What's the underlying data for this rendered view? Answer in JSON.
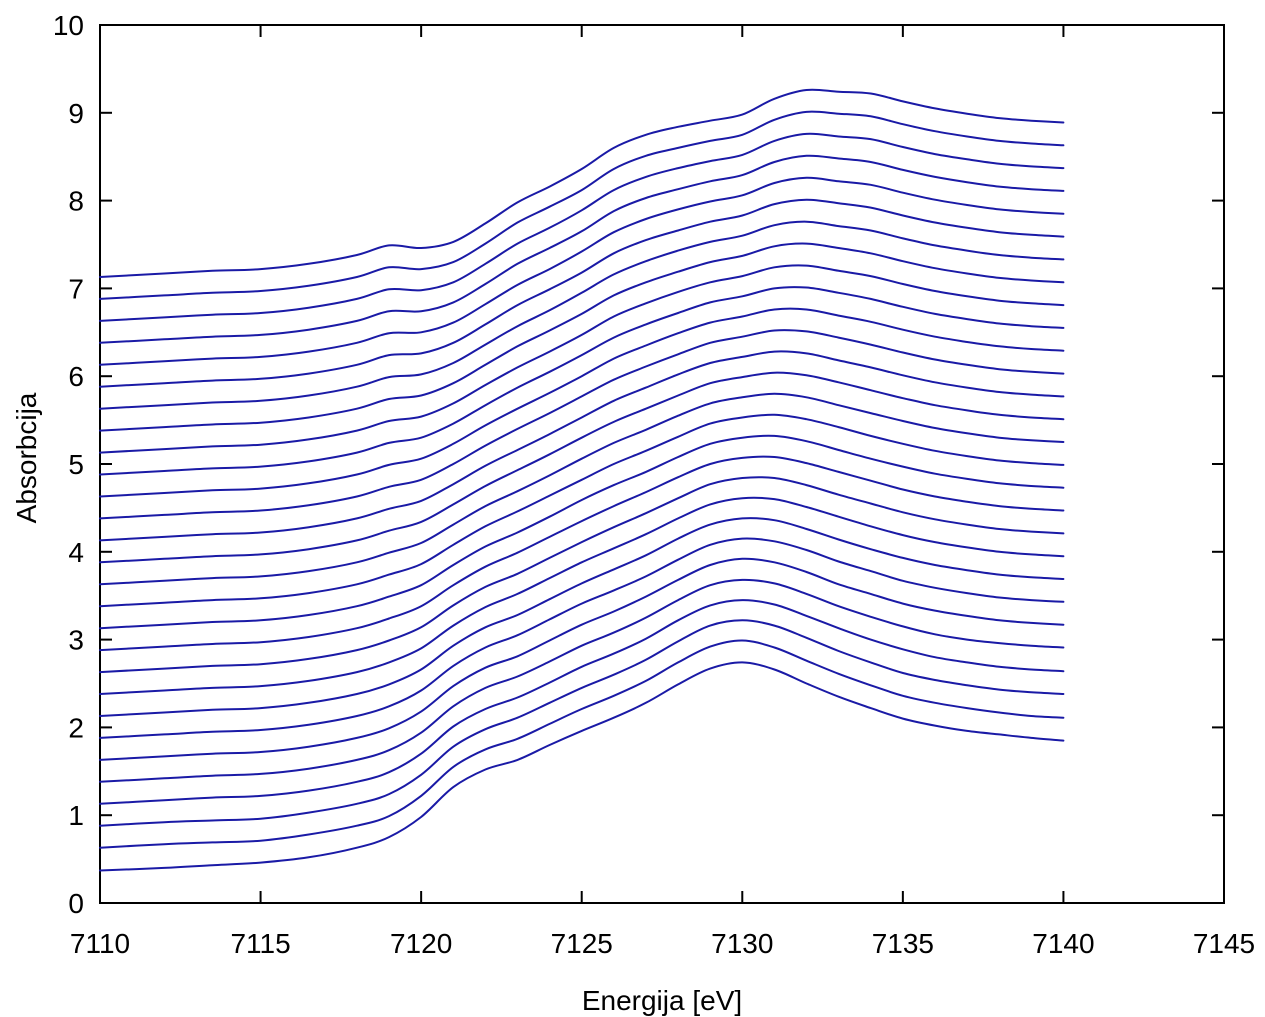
{
  "chart_data": {
    "type": "line",
    "title": "",
    "xlabel": "Energija [eV]",
    "ylabel": "Absorbcija",
    "xlim": [
      7110,
      7145
    ],
    "ylim": [
      0,
      10
    ],
    "xticks": [
      7110,
      7115,
      7120,
      7125,
      7130,
      7135,
      7140,
      7145
    ],
    "yticks": [
      0,
      1,
      2,
      3,
      4,
      5,
      6,
      7,
      8,
      9,
      10
    ],
    "xtick_labels": [
      "7110",
      "7115",
      "7120",
      "7125",
      "7130",
      "7135",
      "7140",
      "7145"
    ],
    "ytick_labels": [
      "0",
      "1",
      "2",
      "3",
      "4",
      "5",
      "6",
      "7",
      "8",
      "9",
      "10"
    ],
    "grid": false,
    "legend": "none",
    "line_color": "#1a1aa6",
    "x": [
      7110,
      7112,
      7113.5,
      7115,
      7116.5,
      7118,
      7119,
      7120,
      7121,
      7122,
      7123,
      7124,
      7125,
      7126,
      7127,
      7128,
      7129,
      7130,
      7131,
      7132,
      7133,
      7134,
      7135,
      7136,
      7137,
      7138,
      7139,
      7140
    ],
    "series": [
      {
        "values": [
          0.37,
          0.4,
          0.43,
          0.46,
          0.52,
          0.63,
          0.75,
          0.98,
          1.32,
          1.52,
          1.63,
          1.8,
          1.96,
          2.11,
          2.28,
          2.49,
          2.67,
          2.74,
          2.66,
          2.5,
          2.35,
          2.22,
          2.1,
          2.02,
          1.96,
          1.92,
          1.88,
          1.85
        ]
      },
      {
        "values": [
          0.63,
          0.67,
          0.69,
          0.71,
          0.78,
          0.88,
          0.99,
          1.22,
          1.55,
          1.75,
          1.87,
          2.04,
          2.21,
          2.36,
          2.53,
          2.74,
          2.92,
          2.99,
          2.91,
          2.76,
          2.61,
          2.48,
          2.36,
          2.28,
          2.22,
          2.17,
          2.13,
          2.11
        ]
      },
      {
        "values": [
          0.88,
          0.92,
          0.94,
          0.96,
          1.03,
          1.13,
          1.24,
          1.46,
          1.78,
          1.98,
          2.11,
          2.28,
          2.45,
          2.6,
          2.77,
          2.98,
          3.16,
          3.22,
          3.16,
          3.02,
          2.87,
          2.74,
          2.62,
          2.54,
          2.48,
          2.43,
          2.4,
          2.38
        ]
      },
      {
        "values": [
          1.13,
          1.17,
          1.2,
          1.22,
          1.28,
          1.38,
          1.49,
          1.7,
          2.01,
          2.21,
          2.34,
          2.51,
          2.69,
          2.84,
          3.01,
          3.22,
          3.39,
          3.45,
          3.4,
          3.27,
          3.13,
          3.0,
          2.89,
          2.8,
          2.74,
          2.69,
          2.66,
          2.64
        ]
      },
      {
        "values": [
          1.38,
          1.42,
          1.45,
          1.47,
          1.53,
          1.63,
          1.74,
          1.94,
          2.24,
          2.45,
          2.58,
          2.75,
          2.93,
          3.08,
          3.25,
          3.45,
          3.62,
          3.68,
          3.64,
          3.52,
          3.38,
          3.26,
          3.15,
          3.06,
          3.0,
          2.96,
          2.93,
          2.91
        ]
      },
      {
        "values": [
          1.63,
          1.67,
          1.7,
          1.72,
          1.78,
          1.88,
          1.99,
          2.18,
          2.47,
          2.68,
          2.81,
          2.99,
          3.17,
          3.32,
          3.49,
          3.68,
          3.85,
          3.92,
          3.88,
          3.77,
          3.63,
          3.52,
          3.41,
          3.33,
          3.27,
          3.22,
          3.19,
          3.17
        ]
      },
      {
        "values": [
          1.88,
          1.92,
          1.95,
          1.97,
          2.03,
          2.13,
          2.24,
          2.42,
          2.7,
          2.91,
          3.05,
          3.23,
          3.41,
          3.56,
          3.72,
          3.91,
          4.08,
          4.15,
          4.12,
          4.02,
          3.89,
          3.78,
          3.67,
          3.59,
          3.53,
          3.48,
          3.45,
          3.43
        ]
      },
      {
        "values": [
          2.13,
          2.17,
          2.2,
          2.22,
          2.28,
          2.38,
          2.49,
          2.66,
          2.93,
          3.14,
          3.28,
          3.46,
          3.64,
          3.8,
          3.96,
          4.15,
          4.31,
          4.38,
          4.36,
          4.26,
          4.14,
          4.03,
          3.93,
          3.85,
          3.79,
          3.74,
          3.71,
          3.69
        ]
      },
      {
        "values": [
          2.38,
          2.42,
          2.45,
          2.47,
          2.53,
          2.63,
          2.74,
          2.9,
          3.16,
          3.37,
          3.52,
          3.7,
          3.88,
          4.04,
          4.2,
          4.38,
          4.54,
          4.61,
          4.6,
          4.51,
          4.4,
          4.29,
          4.19,
          4.11,
          4.05,
          4.0,
          3.97,
          3.95
        ]
      },
      {
        "values": [
          2.63,
          2.67,
          2.7,
          2.72,
          2.78,
          2.88,
          2.99,
          3.14,
          3.39,
          3.6,
          3.75,
          3.93,
          4.11,
          4.28,
          4.44,
          4.61,
          4.77,
          4.84,
          4.84,
          4.76,
          4.65,
          4.55,
          4.45,
          4.37,
          4.31,
          4.26,
          4.23,
          4.21
        ]
      },
      {
        "values": [
          2.88,
          2.92,
          2.95,
          2.97,
          3.03,
          3.13,
          3.24,
          3.38,
          3.62,
          3.83,
          3.99,
          4.17,
          4.35,
          4.52,
          4.68,
          4.85,
          5.0,
          5.07,
          5.08,
          5.01,
          4.91,
          4.81,
          4.71,
          4.63,
          4.57,
          4.52,
          4.49,
          4.47
        ]
      },
      {
        "values": [
          3.13,
          3.17,
          3.2,
          3.22,
          3.28,
          3.38,
          3.49,
          3.62,
          3.85,
          4.06,
          4.22,
          4.4,
          4.59,
          4.76,
          4.91,
          5.08,
          5.23,
          5.3,
          5.32,
          5.26,
          5.16,
          5.06,
          4.97,
          4.89,
          4.83,
          4.78,
          4.75,
          4.73
        ]
      },
      {
        "values": [
          3.38,
          3.42,
          3.45,
          3.47,
          3.53,
          3.63,
          3.74,
          3.86,
          4.08,
          4.29,
          4.46,
          4.64,
          4.82,
          5.0,
          5.15,
          5.31,
          5.46,
          5.53,
          5.56,
          5.51,
          5.42,
          5.32,
          5.23,
          5.15,
          5.09,
          5.04,
          5.01,
          4.99
        ]
      },
      {
        "values": [
          3.63,
          3.67,
          3.7,
          3.72,
          3.78,
          3.88,
          3.99,
          4.1,
          4.31,
          4.52,
          4.69,
          4.87,
          5.06,
          5.24,
          5.39,
          5.55,
          5.69,
          5.76,
          5.8,
          5.76,
          5.67,
          5.58,
          5.49,
          5.41,
          5.35,
          5.3,
          5.27,
          5.25
        ]
      },
      {
        "values": [
          3.88,
          3.92,
          3.95,
          3.97,
          4.03,
          4.13,
          4.24,
          4.34,
          4.54,
          4.75,
          4.93,
          5.11,
          5.3,
          5.48,
          5.63,
          5.78,
          5.92,
          5.99,
          6.04,
          6.01,
          5.93,
          5.84,
          5.75,
          5.67,
          5.61,
          5.56,
          5.53,
          5.51
        ]
      },
      {
        "values": [
          4.13,
          4.17,
          4.2,
          4.22,
          4.28,
          4.38,
          4.49,
          4.58,
          4.77,
          4.98,
          5.16,
          5.34,
          5.53,
          5.72,
          5.87,
          6.02,
          6.15,
          6.22,
          6.28,
          6.26,
          6.18,
          6.1,
          6.01,
          5.93,
          5.87,
          5.82,
          5.79,
          5.77
        ]
      },
      {
        "values": [
          4.38,
          4.42,
          4.45,
          4.47,
          4.53,
          4.63,
          4.74,
          4.82,
          5.0,
          5.21,
          5.4,
          5.58,
          5.77,
          5.96,
          6.11,
          6.25,
          6.38,
          6.45,
          6.52,
          6.51,
          6.44,
          6.36,
          6.27,
          6.19,
          6.13,
          6.08,
          6.05,
          6.03
        ]
      },
      {
        "values": [
          4.63,
          4.67,
          4.7,
          4.72,
          4.78,
          4.88,
          4.99,
          5.06,
          5.23,
          5.44,
          5.63,
          5.81,
          6.0,
          6.2,
          6.35,
          6.49,
          6.61,
          6.68,
          6.76,
          6.76,
          6.69,
          6.62,
          6.53,
          6.45,
          6.39,
          6.34,
          6.31,
          6.29
        ]
      },
      {
        "values": [
          4.88,
          4.92,
          4.95,
          4.97,
          5.03,
          5.13,
          5.24,
          5.3,
          5.46,
          5.67,
          5.87,
          6.05,
          6.24,
          6.44,
          6.59,
          6.72,
          6.84,
          6.91,
          7.0,
          7.01,
          6.95,
          6.88,
          6.79,
          6.71,
          6.65,
          6.6,
          6.57,
          6.55
        ]
      },
      {
        "values": [
          5.13,
          5.17,
          5.2,
          5.22,
          5.28,
          5.38,
          5.49,
          5.54,
          5.69,
          5.9,
          6.1,
          6.28,
          6.47,
          6.68,
          6.83,
          6.96,
          7.07,
          7.14,
          7.24,
          7.26,
          7.2,
          7.14,
          7.05,
          6.97,
          6.91,
          6.86,
          6.83,
          6.81
        ]
      },
      {
        "values": [
          5.38,
          5.42,
          5.45,
          5.47,
          5.53,
          5.63,
          5.74,
          5.78,
          5.92,
          6.13,
          6.34,
          6.52,
          6.71,
          6.92,
          7.07,
          7.19,
          7.3,
          7.37,
          7.48,
          7.51,
          7.46,
          7.4,
          7.31,
          7.23,
          7.17,
          7.12,
          7.09,
          7.07
        ]
      },
      {
        "values": [
          5.63,
          5.67,
          5.7,
          5.72,
          5.78,
          5.88,
          5.99,
          6.02,
          6.15,
          6.36,
          6.57,
          6.75,
          6.95,
          7.16,
          7.31,
          7.43,
          7.53,
          7.6,
          7.72,
          7.76,
          7.71,
          7.66,
          7.57,
          7.49,
          7.43,
          7.38,
          7.35,
          7.33
        ]
      },
      {
        "values": [
          5.88,
          5.92,
          5.95,
          5.97,
          6.03,
          6.13,
          6.24,
          6.26,
          6.38,
          6.59,
          6.81,
          6.99,
          7.18,
          7.4,
          7.55,
          7.66,
          7.76,
          7.83,
          7.96,
          8.01,
          7.97,
          7.92,
          7.83,
          7.75,
          7.69,
          7.64,
          7.61,
          7.59
        ]
      },
      {
        "values": [
          6.13,
          6.17,
          6.2,
          6.22,
          6.28,
          6.38,
          6.49,
          6.5,
          6.61,
          6.82,
          7.04,
          7.22,
          7.42,
          7.64,
          7.79,
          7.9,
          7.99,
          8.06,
          8.2,
          8.26,
          8.22,
          8.18,
          8.09,
          8.01,
          7.95,
          7.9,
          7.87,
          7.85
        ]
      },
      {
        "values": [
          6.38,
          6.42,
          6.45,
          6.47,
          6.53,
          6.63,
          6.74,
          6.74,
          6.84,
          7.05,
          7.28,
          7.46,
          7.65,
          7.88,
          8.03,
          8.13,
          8.22,
          8.29,
          8.44,
          8.51,
          8.48,
          8.44,
          8.35,
          8.27,
          8.21,
          8.16,
          8.13,
          8.11
        ]
      },
      {
        "values": [
          6.63,
          6.67,
          6.7,
          6.72,
          6.78,
          6.88,
          6.99,
          6.98,
          7.07,
          7.28,
          7.51,
          7.69,
          7.89,
          8.12,
          8.27,
          8.37,
          8.45,
          8.52,
          8.68,
          8.76,
          8.73,
          8.7,
          8.61,
          8.53,
          8.47,
          8.42,
          8.39,
          8.37
        ]
      },
      {
        "values": [
          6.88,
          6.92,
          6.95,
          6.97,
          7.03,
          7.13,
          7.24,
          7.22,
          7.3,
          7.51,
          7.75,
          7.93,
          8.12,
          8.36,
          8.51,
          8.6,
          8.68,
          8.75,
          8.92,
          9.01,
          8.99,
          8.96,
          8.87,
          8.79,
          8.73,
          8.68,
          8.65,
          8.63
        ]
      },
      {
        "values": [
          7.13,
          7.17,
          7.2,
          7.22,
          7.28,
          7.38,
          7.49,
          7.46,
          7.53,
          7.74,
          7.98,
          8.16,
          8.36,
          8.6,
          8.75,
          8.84,
          8.91,
          8.98,
          9.16,
          9.26,
          9.24,
          9.22,
          9.13,
          9.05,
          8.99,
          8.94,
          8.91,
          8.89
        ]
      }
    ]
  }
}
